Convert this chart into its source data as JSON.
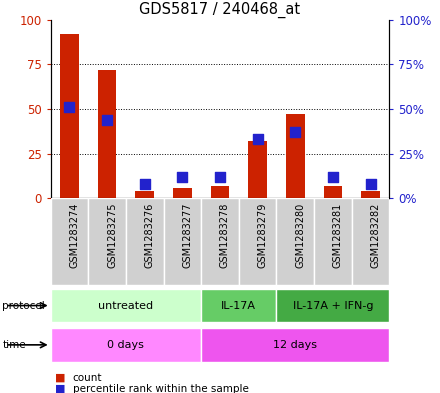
{
  "title": "GDS5817 / 240468_at",
  "samples": [
    "GSM1283274",
    "GSM1283275",
    "GSM1283276",
    "GSM1283277",
    "GSM1283278",
    "GSM1283279",
    "GSM1283280",
    "GSM1283281",
    "GSM1283282"
  ],
  "count_values": [
    92,
    72,
    4,
    6,
    7,
    32,
    47,
    7,
    4
  ],
  "percentile_values": [
    51,
    44,
    8,
    12,
    12,
    33,
    37,
    12,
    8
  ],
  "bar_color": "#cc2200",
  "dot_color": "#2222cc",
  "protocol_groups": [
    {
      "label": "untreated",
      "start": 0,
      "end": 4,
      "color": "#ccffcc"
    },
    {
      "label": "IL-17A",
      "start": 4,
      "end": 6,
      "color": "#66cc66"
    },
    {
      "label": "IL-17A + IFN-g",
      "start": 6,
      "end": 9,
      "color": "#44aa44"
    }
  ],
  "time_groups": [
    {
      "label": "0 days",
      "start": 0,
      "end": 4,
      "color": "#ff88ff"
    },
    {
      "label": "12 days",
      "start": 4,
      "end": 9,
      "color": "#ee55ee"
    }
  ],
  "ylim": [
    0,
    100
  ],
  "yticks": [
    0,
    25,
    50,
    75,
    100
  ],
  "ytick_labels_left": [
    "0",
    "25",
    "50",
    "75",
    "100"
  ],
  "ytick_labels_right": [
    "0%",
    "25%",
    "50%",
    "75%",
    "100%"
  ],
  "legend_count_label": "count",
  "legend_pct_label": "percentile rank within the sample",
  "left_axis_color": "#cc2200",
  "right_axis_color": "#2222cc",
  "bg_color": "#ffffff",
  "grid_color": "#000000",
  "bar_width": 0.5,
  "dot_size": 55,
  "sample_box_color": "#d0d0d0"
}
